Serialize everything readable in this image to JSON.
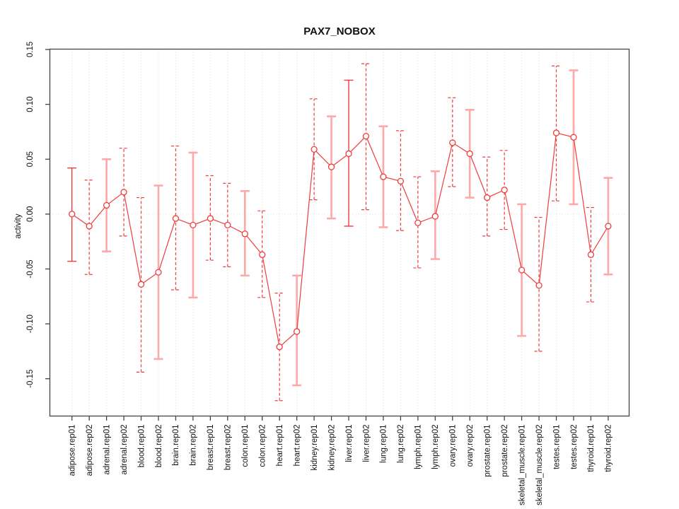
{
  "chart_data": {
    "type": "line",
    "title": "PAX7_NOBOX",
    "xlabel": "",
    "ylabel": "activity",
    "ylim": [
      -0.184,
      0.1503
    ],
    "ytick_values": [
      -0.15,
      -0.1,
      -0.05,
      0.0,
      0.05,
      0.1,
      0.15
    ],
    "ytick_labels": [
      "-0.15",
      "-0.10",
      "-0.05",
      "0.00",
      "0.05",
      "0.10",
      "0.15"
    ],
    "grid": "dotted vertical line per category and dotted horizontal line at zero",
    "legend": "none",
    "marker": "open-circle",
    "categories": [
      "adipose.rep01",
      "adipose.rep02",
      "adrenal.rep01",
      "adrenal.rep02",
      "blood.rep01",
      "blood.rep02",
      "brain.rep01",
      "brain.rep02",
      "breast.rep01",
      "breast.rep02",
      "colon.rep01",
      "colon.rep02",
      "heart.rep01",
      "heart.rep02",
      "kidney.rep01",
      "kidney.rep02",
      "liver.rep01",
      "liver.rep02",
      "lung.rep01",
      "lung.rep02",
      "lymph.rep01",
      "lymph.rep02",
      "ovary.rep01",
      "ovary.rep02",
      "prostate.rep01",
      "prostate.rep02",
      "skeletal_muscle.rep01",
      "skeletal_muscle.rep02",
      "testes.rep01",
      "testes.rep02",
      "thyroid.rep01",
      "thyroid.rep02"
    ],
    "series": [
      {
        "name": "activity",
        "values": [
          0.0,
          -0.011,
          0.008,
          0.02,
          -0.064,
          -0.053,
          -0.004,
          -0.01,
          -0.004,
          -0.01,
          -0.018,
          -0.037,
          -0.121,
          -0.107,
          0.059,
          0.043,
          0.055,
          0.071,
          0.034,
          0.03,
          -0.008,
          -0.002,
          0.065,
          0.055,
          0.015,
          0.022,
          -0.051,
          -0.065,
          0.074,
          0.07,
          -0.037,
          -0.011
        ],
        "ci_low": [
          -0.043,
          -0.055,
          -0.034,
          -0.02,
          -0.144,
          -0.132,
          -0.069,
          -0.076,
          -0.042,
          -0.048,
          -0.056,
          -0.076,
          -0.17,
          -0.156,
          0.013,
          -0.004,
          -0.011,
          0.004,
          -0.012,
          -0.015,
          -0.049,
          -0.041,
          0.025,
          0.015,
          -0.02,
          -0.014,
          -0.111,
          -0.125,
          0.012,
          0.009,
          -0.08,
          -0.055
        ],
        "ci_high": [
          0.042,
          0.031,
          0.05,
          0.06,
          0.015,
          0.026,
          0.062,
          0.056,
          0.035,
          0.028,
          0.021,
          0.003,
          -0.072,
          -0.056,
          0.105,
          0.089,
          0.122,
          0.137,
          0.08,
          0.076,
          0.034,
          0.039,
          0.106,
          0.095,
          0.052,
          0.058,
          0.009,
          -0.003,
          0.135,
          0.131,
          0.006,
          0.033
        ],
        "bar_styles": [
          "solid",
          "dashed",
          "pink",
          "dashed",
          "dashed",
          "pink",
          "dashed",
          "pink",
          "dashed",
          "dashed",
          "pink",
          "dashed",
          "dashed",
          "pink",
          "dashed",
          "pink",
          "solid",
          "dashed",
          "pink",
          "dashed",
          "dashed",
          "pink",
          "dashed",
          "pink",
          "dashed",
          "dashed",
          "pink",
          "dashed",
          "dashed",
          "pink",
          "dashed",
          "pink"
        ]
      }
    ]
  },
  "colors": {
    "series_red": "#f03c3c",
    "bar_pink": "#ffa8a8",
    "grid_gray": "#dadada",
    "axis_gray": "#454545",
    "background": "#ffffff"
  }
}
